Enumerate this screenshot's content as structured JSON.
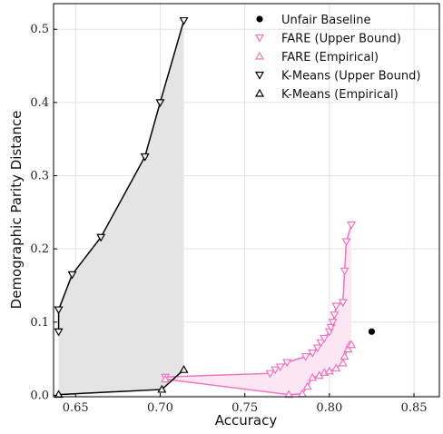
{
  "chart_data": {
    "type": "line",
    "title": "",
    "xlabel": "Accuracy",
    "ylabel": "Demographic Parity Distance",
    "xlim": [
      0.637,
      0.865
    ],
    "ylim": [
      -0.002,
      0.535
    ],
    "xticks": [
      0.65,
      0.7,
      0.75,
      0.8,
      0.85
    ],
    "xtick_labels": [
      "0.65",
      "0.70",
      "0.75",
      "0.80",
      "0.85"
    ],
    "yticks": [
      0.0,
      0.1,
      0.2,
      0.3,
      0.4,
      0.5
    ],
    "ytick_labels": [
      "0.0",
      "0.1",
      "0.2",
      "0.3",
      "0.4",
      "0.5"
    ],
    "grid": true,
    "legend_position": "top-right",
    "colors": {
      "fare": "#f075c0",
      "fare_fill": "#fde6f3",
      "kmeans": "#000000",
      "kmeans_fill": "#e4e4e4",
      "baseline": "#000000"
    },
    "series": [
      {
        "name": "Unfair Baseline",
        "marker": "circle",
        "points": [
          [
            0.825,
            0.087
          ]
        ]
      },
      {
        "name": "FARE (Upper Bound)",
        "marker": "triangle-down",
        "points": [
          [
            0.703,
            0.025
          ],
          [
            0.765,
            0.03
          ],
          [
            0.768,
            0.035
          ],
          [
            0.771,
            0.039
          ],
          [
            0.775,
            0.045
          ],
          [
            0.786,
            0.053
          ],
          [
            0.79,
            0.058
          ],
          [
            0.793,
            0.065
          ],
          [
            0.795,
            0.072
          ],
          [
            0.797,
            0.078
          ],
          [
            0.8,
            0.087
          ],
          [
            0.801,
            0.093
          ],
          [
            0.802,
            0.1
          ],
          [
            0.803,
            0.11
          ],
          [
            0.804,
            0.122
          ],
          [
            0.808,
            0.127
          ],
          [
            0.809,
            0.17
          ],
          [
            0.81,
            0.21
          ],
          [
            0.813,
            0.233
          ]
        ]
      },
      {
        "name": "FARE (Empirical)",
        "marker": "triangle-up",
        "points": [
          [
            0.703,
            0.022
          ],
          [
            0.776,
            0.001
          ],
          [
            0.784,
            0.002
          ],
          [
            0.787,
            0.012
          ],
          [
            0.79,
            0.024
          ],
          [
            0.794,
            0.027
          ],
          [
            0.797,
            0.031
          ],
          [
            0.8,
            0.033
          ],
          [
            0.804,
            0.037
          ],
          [
            0.808,
            0.044
          ],
          [
            0.809,
            0.053
          ],
          [
            0.811,
            0.063
          ],
          [
            0.812,
            0.069
          ],
          [
            0.813,
            0.069
          ]
        ]
      },
      {
        "name": "K-Means (Upper Bound)",
        "marker": "triangle-down",
        "points": [
          [
            0.64,
            0.087
          ],
          [
            0.64,
            0.117
          ],
          [
            0.648,
            0.165
          ],
          [
            0.665,
            0.216
          ],
          [
            0.691,
            0.326
          ],
          [
            0.7,
            0.4
          ],
          [
            0.714,
            0.512
          ]
        ]
      },
      {
        "name": "K-Means (Empirical)",
        "marker": "triangle-up",
        "points": [
          [
            0.64,
            0.001
          ],
          [
            0.701,
            0.008
          ],
          [
            0.714,
            0.035
          ]
        ]
      }
    ]
  }
}
